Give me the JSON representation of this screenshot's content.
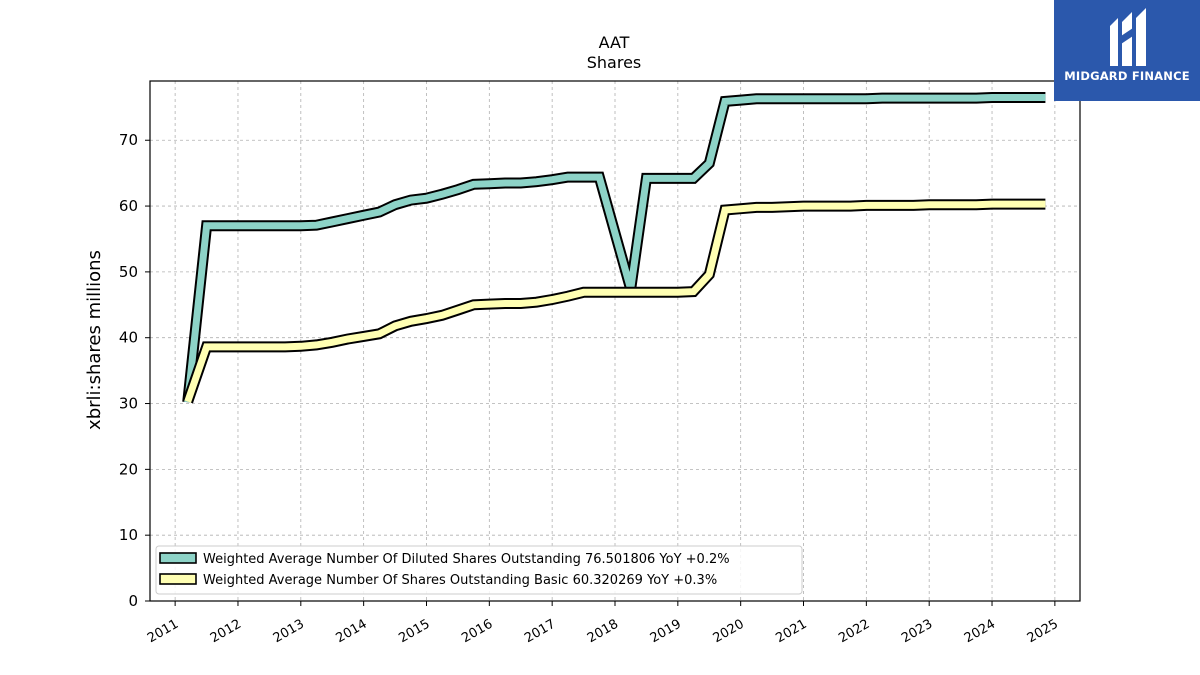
{
  "brand": {
    "name": "MIDGARD FINANCE",
    "background": "#2b58ac"
  },
  "chart_data": {
    "type": "line",
    "title": "AAT",
    "subtitle": "Shares",
    "xlabel": "",
    "ylabel": "xbrli:shares millions",
    "xlim": [
      2010.6,
      2025.4
    ],
    "ylim": [
      0,
      79
    ],
    "x_ticks": [
      "2011",
      "2012",
      "2013",
      "2014",
      "2015",
      "2016",
      "2017",
      "2018",
      "2019",
      "2020",
      "2021",
      "2022",
      "2023",
      "2024",
      "2025"
    ],
    "y_ticks": [
      0,
      10,
      20,
      30,
      40,
      50,
      60,
      70
    ],
    "grid": true,
    "legend_position": "lower-left",
    "series": [
      {
        "name": "Weighted Average Number Of Diluted Shares Outstanding  76.501806 YoY +0.2%",
        "color": "#8dd3c7",
        "x": [
          2011.2,
          2011.5,
          2011.75,
          2012.0,
          2012.25,
          2012.5,
          2012.75,
          2013.0,
          2013.25,
          2013.5,
          2013.75,
          2014.0,
          2014.25,
          2014.5,
          2014.75,
          2015.0,
          2015.25,
          2015.5,
          2015.75,
          2016.0,
          2016.25,
          2016.5,
          2016.75,
          2017.0,
          2017.25,
          2017.5,
          2017.75,
          2018.25,
          2018.5,
          2018.75,
          2019.0,
          2019.25,
          2019.5,
          2019.75,
          2020.0,
          2020.25,
          2020.5,
          2020.75,
          2021.0,
          2021.25,
          2021.5,
          2021.75,
          2022.0,
          2022.25,
          2022.5,
          2022.75,
          2023.0,
          2023.25,
          2023.5,
          2023.75,
          2024.0,
          2024.25,
          2024.5,
          2024.75,
          2024.85
        ],
        "y": [
          30.2,
          57.0,
          57.0,
          57.0,
          57.0,
          57.0,
          57.0,
          57.0,
          57.1,
          57.6,
          58.1,
          58.6,
          59.1,
          60.2,
          60.9,
          61.2,
          61.8,
          62.5,
          63.3,
          63.4,
          63.5,
          63.5,
          63.7,
          64.0,
          64.4,
          64.4,
          64.4,
          47.4,
          64.2,
          64.2,
          64.2,
          64.2,
          66.5,
          75.9,
          76.1,
          76.3,
          76.3,
          76.3,
          76.3,
          76.3,
          76.3,
          76.3,
          76.3,
          76.4,
          76.4,
          76.4,
          76.4,
          76.4,
          76.4,
          76.4,
          76.5,
          76.5,
          76.5,
          76.5,
          76.5
        ]
      },
      {
        "name": "Weighted Average Number Of Shares Outstanding Basic  60.320269 YoY +0.3%",
        "color": "#ffffb3",
        "x": [
          2011.2,
          2011.5,
          2011.75,
          2012.0,
          2012.25,
          2012.5,
          2012.75,
          2013.0,
          2013.25,
          2013.5,
          2013.75,
          2014.0,
          2014.25,
          2014.5,
          2014.75,
          2015.0,
          2015.25,
          2015.5,
          2015.75,
          2016.0,
          2016.25,
          2016.5,
          2016.75,
          2017.0,
          2017.25,
          2017.5,
          2017.75,
          2018.0,
          2018.25,
          2018.5,
          2018.75,
          2019.0,
          2019.25,
          2019.5,
          2019.75,
          2020.0,
          2020.25,
          2020.5,
          2020.75,
          2021.0,
          2021.25,
          2021.5,
          2021.75,
          2022.0,
          2022.25,
          2022.5,
          2022.75,
          2023.0,
          2023.25,
          2023.5,
          2023.75,
          2024.0,
          2024.25,
          2024.5,
          2024.75,
          2024.85
        ],
        "y": [
          30.3,
          38.6,
          38.6,
          38.6,
          38.6,
          38.6,
          38.6,
          38.7,
          38.9,
          39.3,
          39.8,
          40.2,
          40.6,
          41.8,
          42.5,
          42.9,
          43.4,
          44.2,
          45.0,
          45.1,
          45.2,
          45.2,
          45.4,
          45.8,
          46.3,
          46.9,
          46.9,
          46.9,
          46.9,
          46.9,
          46.9,
          46.9,
          47.0,
          49.6,
          59.4,
          59.6,
          59.8,
          59.8,
          59.9,
          60.0,
          60.0,
          60.0,
          60.0,
          60.1,
          60.1,
          60.1,
          60.1,
          60.2,
          60.2,
          60.2,
          60.2,
          60.3,
          60.3,
          60.3,
          60.3,
          60.3
        ]
      }
    ]
  }
}
